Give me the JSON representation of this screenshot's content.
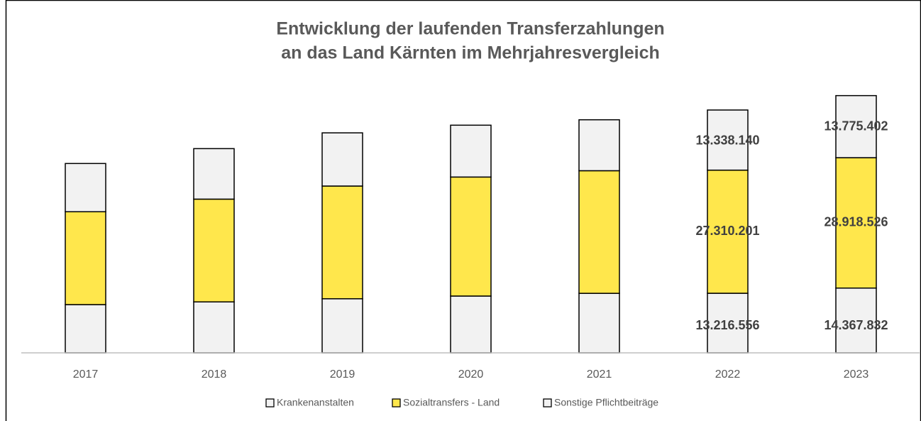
{
  "chart_data": {
    "type": "stacked_bar",
    "title": [
      "Entwicklung der laufenden Transferzahlungen",
      "an das Land Kärnten im Mehrjahresvergleich"
    ],
    "categories": [
      "2017",
      "2018",
      "2019",
      "2020",
      "2021",
      "2022",
      "2023"
    ],
    "series": [
      {
        "name": "Krankenanstalten",
        "color": "#f2f2f2",
        "values": [
          10700000,
          11300000,
          12000000,
          12600000,
          13200000,
          13216556,
          14367832
        ],
        "value_labels": [
          null,
          null,
          null,
          null,
          null,
          "13.216.556",
          "14.367.832"
        ]
      },
      {
        "name": "Sozialtransfers - Land",
        "color": "#ffe74c",
        "values": [
          20600000,
          22800000,
          25000000,
          26400000,
          27200000,
          27310201,
          28918526
        ],
        "value_labels": [
          null,
          null,
          null,
          null,
          null,
          "27.310.201",
          "28.918.526"
        ]
      },
      {
        "name": "Sonstige Pflichtbeiträge",
        "color": "#f2f2f2",
        "values": [
          10700000,
          11200000,
          11800000,
          11500000,
          11300000,
          13338140,
          13775402
        ],
        "value_labels": [
          null,
          null,
          null,
          null,
          null,
          "13.338.140",
          "13.775.402"
        ]
      }
    ],
    "ylim": [
      0,
      60000000
    ]
  }
}
